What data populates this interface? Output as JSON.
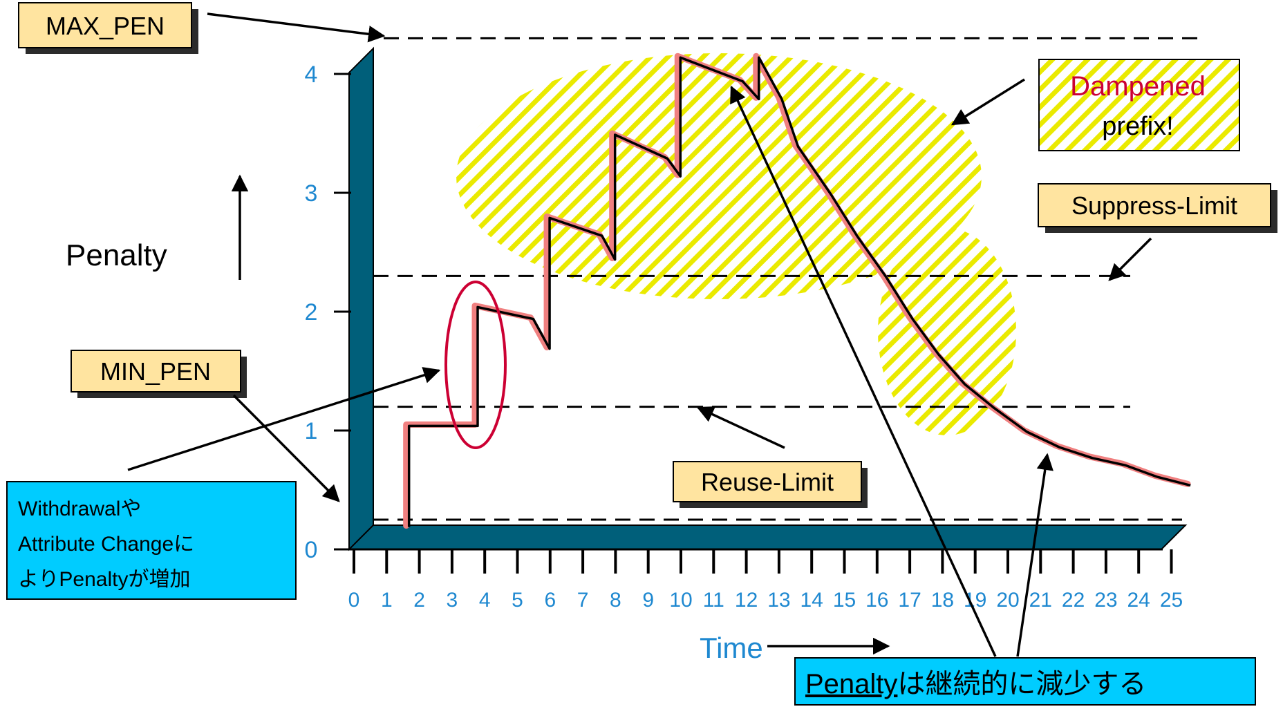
{
  "chart_data": {
    "type": "line",
    "title": "",
    "xlabel": "Time",
    "ylabel": "Penalty",
    "xlim": [
      0,
      25
    ],
    "ylim": [
      0,
      4
    ],
    "x_ticks": [
      "0",
      "1",
      "2",
      "3",
      "4",
      "5",
      "6",
      "7",
      "8",
      "9",
      "10",
      "11",
      "12",
      "13",
      "14",
      "15",
      "16",
      "17",
      "18",
      "19",
      "20",
      "21",
      "22",
      "23",
      "24",
      "25"
    ],
    "y_ticks": [
      "0",
      "1",
      "2",
      "3",
      "4"
    ],
    "grid": false,
    "legend": "none",
    "thresholds": {
      "max_pen": {
        "label": "MAX_PEN",
        "value": 4.3
      },
      "suppress_limit": {
        "label": "Suppress-Limit",
        "value": 2.3
      },
      "reuse_limit": {
        "label": "Reuse-Limit",
        "value": 1.2
      },
      "min_pen": {
        "label": "MIN_PEN",
        "value": 0.25
      }
    },
    "series": [
      {
        "color": "#f08080",
        "points": [
          [
            1.6,
            0.2
          ],
          [
            1.6,
            1.05
          ],
          [
            3.7,
            1.05
          ],
          [
            3.7,
            2.05
          ],
          [
            5.4,
            1.95
          ],
          [
            5.9,
            1.7
          ],
          [
            5.9,
            2.8
          ],
          [
            7.5,
            2.65
          ],
          [
            7.9,
            2.45
          ],
          [
            7.9,
            3.5
          ],
          [
            9.5,
            3.3
          ],
          [
            9.9,
            3.15
          ],
          [
            9.9,
            4.15
          ],
          [
            11.8,
            3.95
          ],
          [
            12.3,
            3.8
          ],
          [
            12.3,
            4.15
          ],
          [
            13.0,
            3.8
          ],
          [
            13.5,
            3.4
          ],
          [
            14.5,
            3.0
          ],
          [
            15.3,
            2.65
          ],
          [
            16.2,
            2.3
          ],
          [
            17.0,
            1.95
          ],
          [
            17.8,
            1.65
          ],
          [
            18.6,
            1.4
          ],
          [
            19.5,
            1.2
          ],
          [
            20.5,
            1.0
          ],
          [
            21.5,
            0.87
          ],
          [
            22.5,
            0.78
          ],
          [
            23.5,
            0.72
          ],
          [
            24.5,
            0.62
          ],
          [
            25.5,
            0.55
          ]
        ]
      }
    ],
    "annotations": {
      "dampened_1": "Dampened",
      "dampened_2": "prefix!",
      "callout_left_1": "Withdrawalや",
      "callout_left_2": "Attribute Changeに",
      "callout_left_3": "よりPenaltyが増加",
      "callout_bottom_underlined": "Penalty",
      "callout_bottom_rest": "は継続的に減少する"
    },
    "colors": {
      "axis_wall": "#005f7a",
      "line": "#f08080",
      "hatch": "#e6e600",
      "label_box": "#ffe4a0",
      "callout": "#00ccff",
      "tick_text": "#1e88d0",
      "dampened_text": "#cc0033",
      "ellipse": "#cc0033"
    }
  }
}
